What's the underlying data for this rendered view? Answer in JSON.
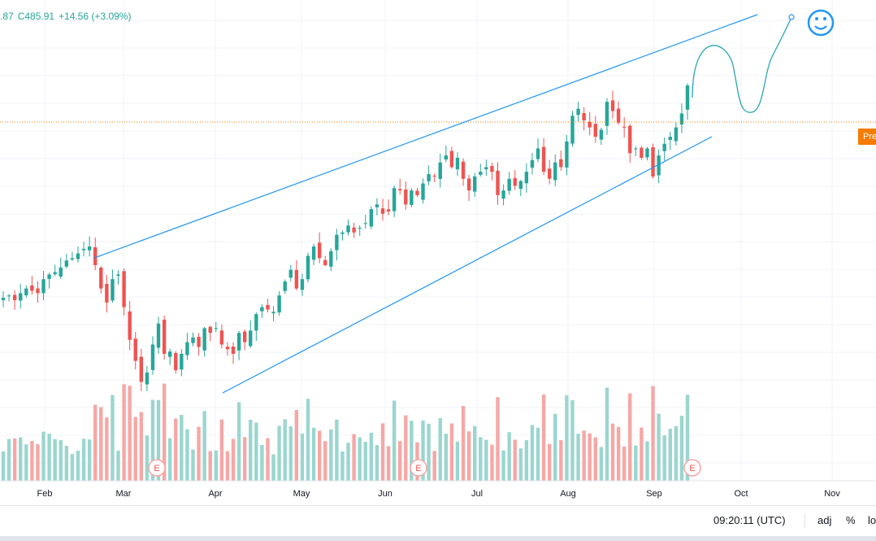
{
  "legend": {
    "open_partial": ".87",
    "close": "C485.91",
    "change": "+14.56 (+3.09%)"
  },
  "price_tag": "Pre",
  "status": {
    "time": "09:20:11 (UTC)",
    "adj": "adj",
    "percent": "%",
    "log": "lo"
  },
  "earnings_marker": "E",
  "colors": {
    "up": "#26a69a",
    "down": "#ef5350",
    "up_volume": "#9ad6cf",
    "down_volume": "#f6a7a5",
    "drawing": "#2196f3",
    "price_line": "#f57c00",
    "grid": "#f0f3fa"
  },
  "chart_data": {
    "type": "candlestick",
    "x_tick_labels": [
      "Feb",
      "Mar",
      "Apr",
      "May",
      "Jun",
      "Jul",
      "Aug",
      "Sep",
      "Oct",
      "Nov"
    ],
    "close_series": [
      424,
      425,
      423,
      426,
      428,
      427,
      426,
      432,
      434,
      435,
      437,
      440,
      441,
      443,
      445,
      446,
      438,
      428,
      422,
      432,
      434,
      420,
      406,
      397,
      388,
      392,
      404,
      413,
      400,
      401,
      393,
      400,
      405,
      407,
      403,
      411,
      409,
      411,
      404,
      402,
      400,
      409,
      405,
      410,
      417,
      420,
      419,
      418,
      425,
      431,
      436,
      428,
      432,
      442,
      446,
      441,
      438,
      444,
      451,
      452,
      455,
      452,
      454,
      456,
      462,
      464,
      460,
      461,
      471,
      470,
      464,
      470,
      468,
      473,
      477,
      476,
      482,
      485,
      480,
      484,
      475,
      470,
      476,
      478,
      480,
      478,
      468,
      470,
      475,
      472,
      474,
      478,
      483,
      488,
      478,
      475,
      482,
      480,
      491,
      502,
      505,
      500,
      497,
      493,
      496,
      508,
      504,
      499,
      497,
      486,
      488,
      484,
      488,
      476,
      485,
      490,
      493,
      497,
      503,
      515
    ],
    "earnings_events_month": [
      "Mar",
      "Jun",
      "Sep"
    ],
    "trendlines": "ascending channel"
  }
}
